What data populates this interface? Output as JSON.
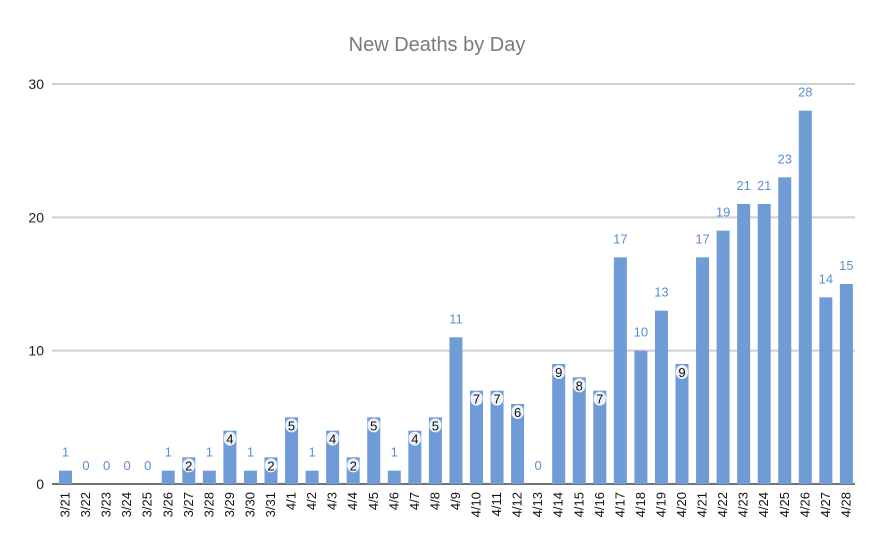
{
  "chart_data": {
    "type": "bar",
    "title": "New Deaths by Day",
    "xlabel": "",
    "ylabel": "",
    "ylim": [
      0,
      30
    ],
    "yticks": [
      0,
      10,
      20,
      30
    ],
    "grid": true,
    "bar_color": "#6f9bd6",
    "label_color": "#5b8fd0",
    "categories": [
      "3/21",
      "3/22",
      "3/23",
      "3/24",
      "3/25",
      "3/26",
      "3/27",
      "3/28",
      "3/29",
      "3/30",
      "3/31",
      "4/1",
      "4/2",
      "4/3",
      "4/4",
      "4/5",
      "4/6",
      "4/7",
      "4/8",
      "4/9",
      "4/10",
      "4/11",
      "4/12",
      "4/13",
      "4/14",
      "4/15",
      "4/16",
      "4/17",
      "4/18",
      "4/19",
      "4/20",
      "4/21",
      "4/22",
      "4/23",
      "4/24",
      "4/25",
      "4/26",
      "4/27",
      "4/28"
    ],
    "values": [
      1,
      0,
      0,
      0,
      0,
      1,
      2,
      1,
      4,
      1,
      2,
      5,
      1,
      4,
      2,
      5,
      1,
      4,
      5,
      11,
      7,
      7,
      6,
      0,
      9,
      8,
      7,
      17,
      10,
      13,
      9,
      17,
      19,
      21,
      21,
      23,
      28,
      14,
      15
    ]
  }
}
